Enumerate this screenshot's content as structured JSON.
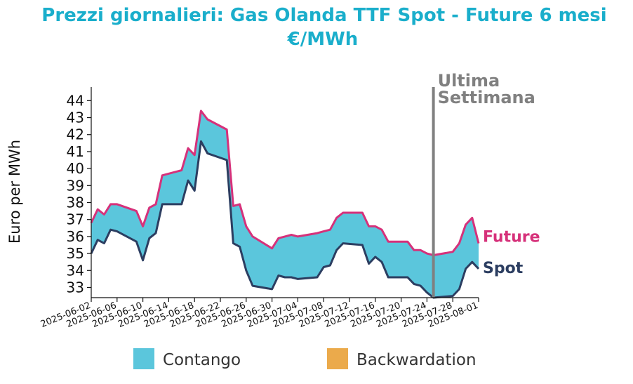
{
  "chart_data": {
    "type": "area",
    "title": [
      "Prezzi giornalieri: Gas Olanda TTF Spot - Future 6 mesi",
      "€/MWh"
    ],
    "ylabel": "Euro per MWh",
    "xlabel": "",
    "ylim": [
      32.4,
      44.8
    ],
    "yticks": [
      33,
      34,
      35,
      36,
      37,
      38,
      39,
      40,
      41,
      42,
      43,
      44
    ],
    "x_start": "2025-06-02",
    "x_end": "2025-08-01",
    "xticks": [
      "2025-06-02",
      "2025-06-06",
      "2025-06-10",
      "2025-06-14",
      "2025-06-18",
      "2025-06-22",
      "2025-06-26",
      "2025-06-30",
      "2025-07-04",
      "2025-07-08",
      "2025-07-12",
      "2025-07-16",
      "2025-07-20",
      "2025-07-24",
      "2025-07-28",
      "2025-08-01"
    ],
    "x": [
      "2025-06-02",
      "2025-06-03",
      "2025-06-04",
      "2025-06-05",
      "2025-06-06",
      "2025-06-09",
      "2025-06-10",
      "2025-06-11",
      "2025-06-12",
      "2025-06-13",
      "2025-06-16",
      "2025-06-17",
      "2025-06-18",
      "2025-06-19",
      "2025-06-20",
      "2025-06-23",
      "2025-06-24",
      "2025-06-25",
      "2025-06-26",
      "2025-06-27",
      "2025-06-30",
      "2025-07-01",
      "2025-07-02",
      "2025-07-03",
      "2025-07-04",
      "2025-07-07",
      "2025-07-08",
      "2025-07-09",
      "2025-07-10",
      "2025-07-11",
      "2025-07-14",
      "2025-07-15",
      "2025-07-16",
      "2025-07-17",
      "2025-07-18",
      "2025-07-21",
      "2025-07-22",
      "2025-07-23",
      "2025-07-24",
      "2025-07-25",
      "2025-07-28",
      "2025-07-29",
      "2025-07-30",
      "2025-07-31",
      "2025-08-01"
    ],
    "series": [
      {
        "name": "Future",
        "color": "#d6317a",
        "values": [
          36.8,
          37.6,
          37.3,
          37.9,
          37.9,
          37.5,
          36.6,
          37.7,
          37.9,
          39.6,
          39.9,
          41.2,
          40.8,
          43.4,
          42.9,
          42.3,
          37.8,
          37.9,
          36.6,
          36.0,
          35.3,
          35.9,
          36.0,
          36.1,
          36.0,
          36.2,
          36.3,
          36.4,
          37.1,
          37.4,
          37.4,
          36.6,
          36.6,
          36.4,
          35.7,
          35.7,
          35.2,
          35.2,
          35.0,
          34.9,
          35.1,
          35.6,
          36.7,
          37.1,
          35.6
        ]
      },
      {
        "name": "Spot",
        "color": "#2c3e61",
        "values": [
          35.0,
          35.8,
          35.6,
          36.4,
          36.3,
          35.7,
          34.6,
          35.9,
          36.2,
          37.9,
          37.9,
          39.3,
          38.7,
          41.6,
          40.9,
          40.5,
          35.6,
          35.4,
          34.0,
          33.1,
          32.9,
          33.7,
          33.6,
          33.6,
          33.5,
          33.6,
          34.2,
          34.3,
          35.2,
          35.6,
          35.5,
          34.4,
          34.8,
          34.5,
          33.6,
          33.6,
          33.2,
          33.1,
          32.7,
          32.4,
          32.5,
          32.9,
          34.1,
          34.5,
          34.1
        ]
      }
    ],
    "fill_colors": {
      "contango": "#5bc6dc",
      "backwardation": "#ebaa4b"
    },
    "annotation": {
      "date": "2025-07-25",
      "text": [
        "Ultima",
        "Settimana"
      ],
      "color": "#808080"
    },
    "legend": {
      "placement": "bottom-center",
      "items": [
        {
          "label": "Contango",
          "color": "#5bc6dc"
        },
        {
          "label": "Backwardation",
          "color": "#ebaa4b"
        }
      ]
    },
    "grid": false,
    "labels_at_line_end": [
      "Future",
      "Spot"
    ]
  }
}
